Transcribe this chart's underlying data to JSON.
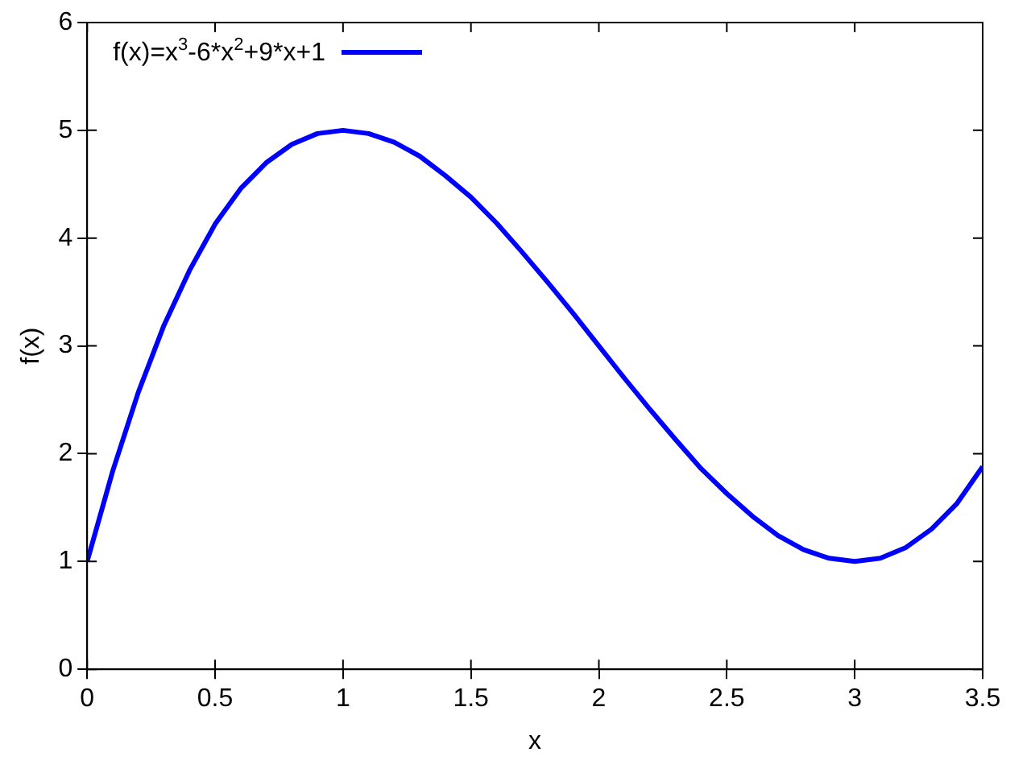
{
  "chart_data": {
    "type": "line",
    "xlabel": "x",
    "ylabel": "f(x)",
    "xlim": [
      0,
      3.5
    ],
    "xticks": [
      0,
      0.5,
      1,
      1.5,
      2,
      2.5,
      3,
      3.5
    ],
    "ylim": [
      0,
      6
    ],
    "yticks": [
      0,
      1,
      2,
      3,
      4,
      5,
      6
    ],
    "legend": "top left",
    "marker": "none",
    "line_style": "solid",
    "x": [
      0,
      0.1,
      0.2,
      0.3,
      0.4,
      0.5,
      0.6,
      0.7,
      0.8,
      0.9,
      1,
      1.1,
      1.2,
      1.3,
      1.4,
      1.5,
      1.6,
      1.7,
      1.8,
      1.9,
      2,
      2.1,
      2.2,
      2.3,
      2.4,
      2.5,
      2.6,
      2.7,
      2.8,
      2.9,
      3,
      3.1,
      3.2,
      3.3,
      3.4,
      3.5
    ],
    "series": [
      {
        "name": "f(x)=x$^{3}$-6*x$^{2}$+9*x+1",
        "color": "#0000ff",
        "values": [
          1,
          1.84,
          2.57,
          3.19,
          3.7,
          4.13,
          4.46,
          4.7,
          4.87,
          4.97,
          5,
          4.97,
          4.89,
          4.76,
          4.58,
          4.38,
          4.14,
          3.87,
          3.59,
          3.3,
          3,
          2.7,
          2.41,
          2.13,
          1.86,
          1.63,
          1.42,
          1.24,
          1.11,
          1.03,
          1,
          1.03,
          1.13,
          1.3,
          1.54,
          1.88
        ]
      }
    ]
  }
}
